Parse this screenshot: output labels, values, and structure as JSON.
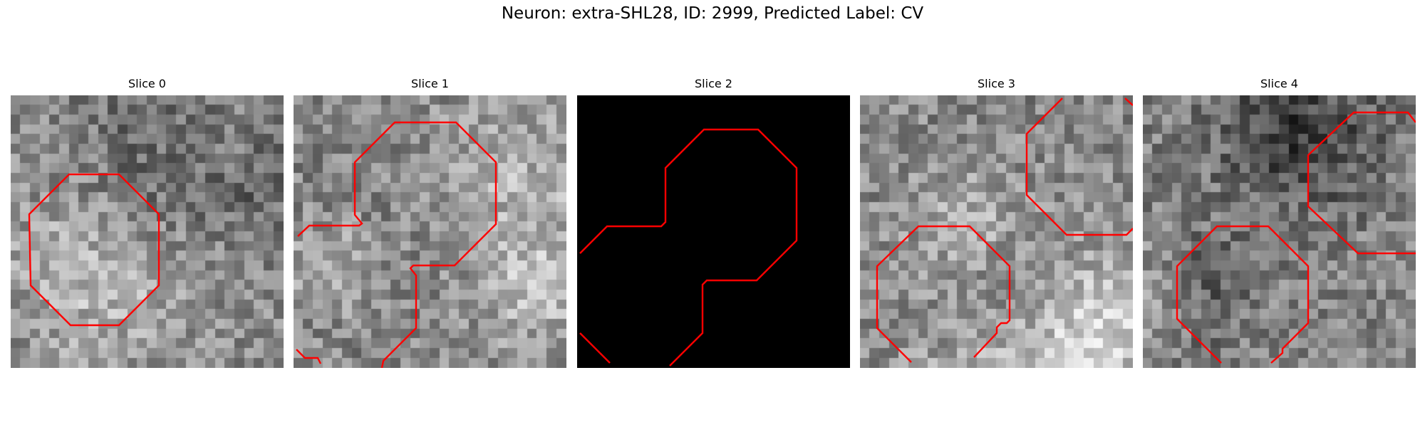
{
  "figure": {
    "title": "Neuron: extra-SHL28, ID: 2999, Predicted Label: CV"
  },
  "panels": [
    {
      "title": "Slice 0",
      "image": "grayscale-noise-patch",
      "contour_color": "#ff0000",
      "dark": false
    },
    {
      "title": "Slice 1",
      "image": "grayscale-noise-patch",
      "contour_color": "#ff0000",
      "dark": false
    },
    {
      "title": "Slice 2",
      "image": "black-patch",
      "contour_color": "#ff0000",
      "dark": true
    },
    {
      "title": "Slice 3",
      "image": "grayscale-noise-patch",
      "contour_color": "#ff0000",
      "dark": false
    },
    {
      "title": "Slice 4",
      "image": "grayscale-noise-patch",
      "contour_color": "#ff0000",
      "dark": false
    }
  ]
}
